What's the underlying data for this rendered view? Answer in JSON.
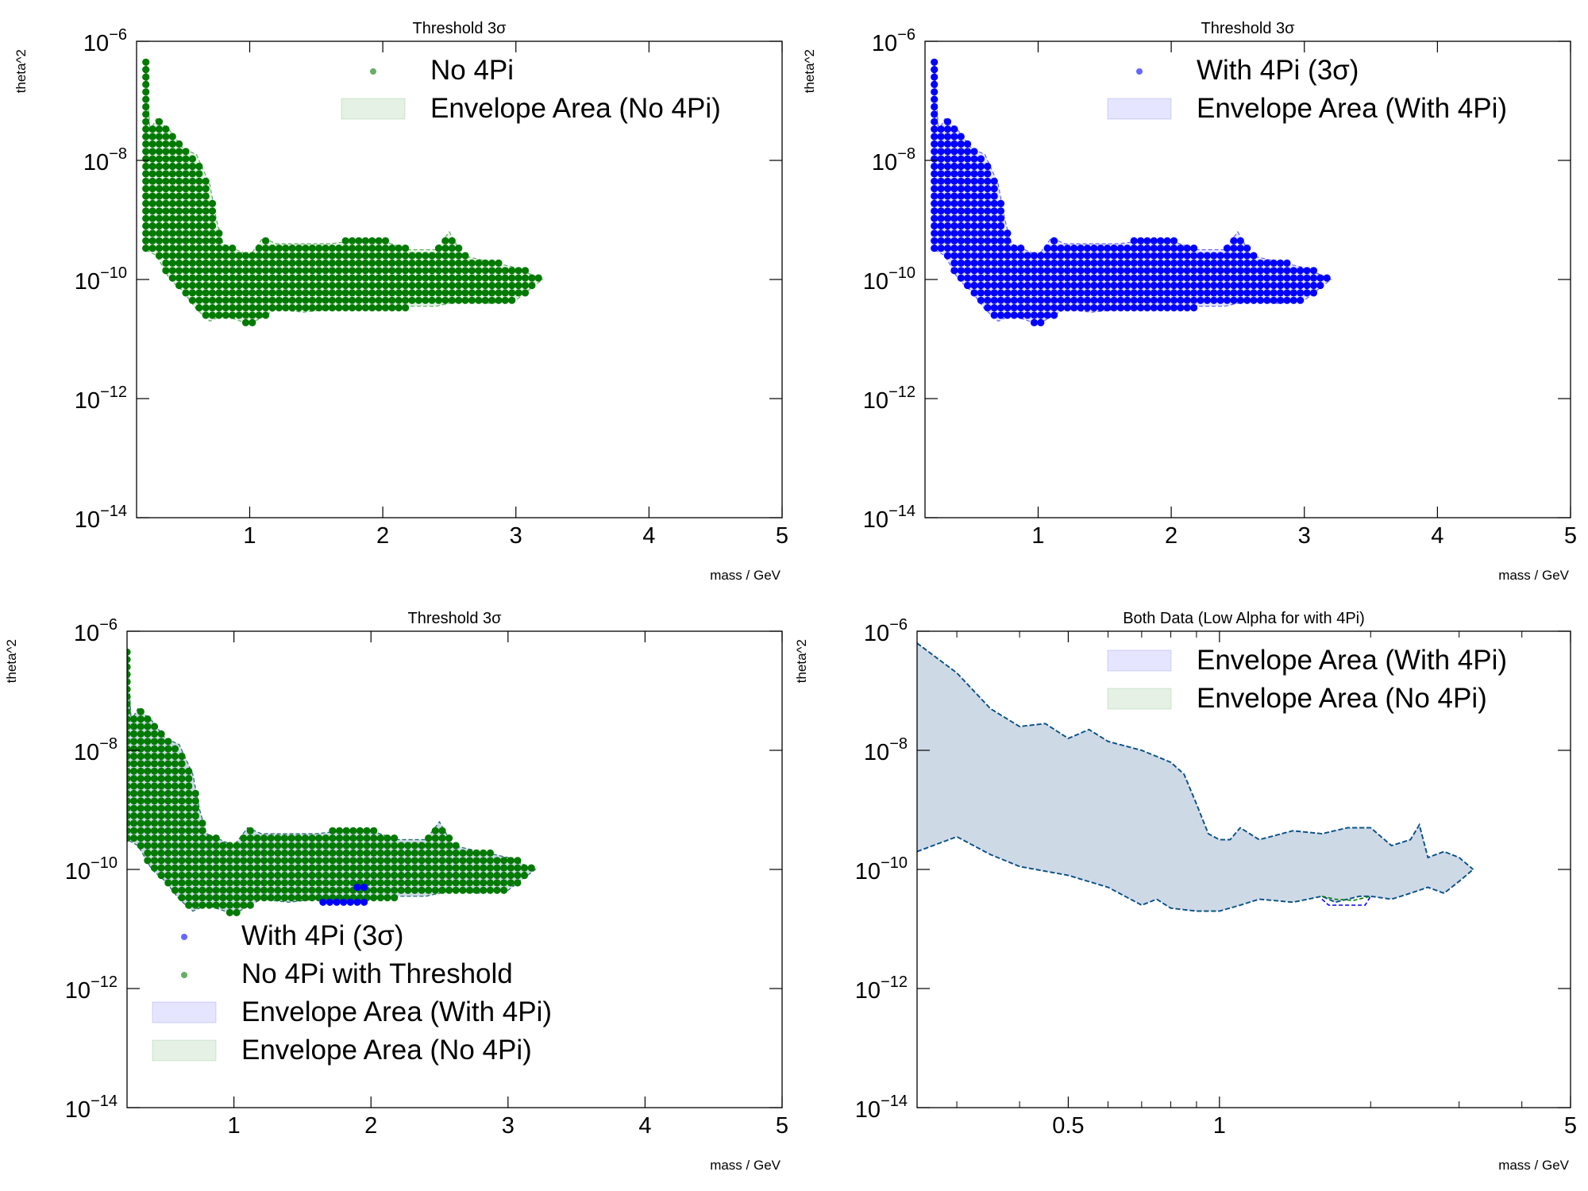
{
  "figure": {
    "panels": [
      {
        "id": "tl",
        "title": "Threshold 3σ",
        "xlabel": "mass / GeV",
        "ylabel": "theta^2",
        "xscale": "linear",
        "xlim": [
          0.15,
          5
        ],
        "xticks": [
          1,
          2,
          3,
          4,
          5
        ],
        "xticklabels": [
          "1",
          "2",
          "3",
          "4",
          "5"
        ],
        "yscale": "log",
        "ylim_exp": [
          -14,
          -6
        ],
        "yticks_exp": [
          -14,
          -12,
          -10,
          -8,
          -6
        ],
        "yticklabels": [
          "10",
          "10",
          "10",
          "10",
          "10"
        ],
        "ytick_exponents": [
          "−14",
          "−12",
          "−10",
          "−8",
          "−6"
        ],
        "legend_position": "top-right",
        "legend": [
          {
            "kind": "point",
            "label": "No 4Pi",
            "color": "#007a00"
          },
          {
            "kind": "area",
            "label": "Envelope Area (No 4Pi)",
            "color": "#007a00"
          }
        ]
      },
      {
        "id": "tr",
        "title": "Threshold 3σ",
        "xlabel": "mass / GeV",
        "ylabel": "theta^2",
        "xscale": "linear",
        "xlim": [
          0.15,
          5
        ],
        "xticks": [
          1,
          2,
          3,
          4,
          5
        ],
        "xticklabels": [
          "1",
          "2",
          "3",
          "4",
          "5"
        ],
        "yscale": "log",
        "ylim_exp": [
          -14,
          -6
        ],
        "yticks_exp": [
          -14,
          -12,
          -10,
          -8,
          -6
        ],
        "yticklabels": [
          "10",
          "10",
          "10",
          "10",
          "10"
        ],
        "ytick_exponents": [
          "−14",
          "−12",
          "−10",
          "−8",
          "−6"
        ],
        "legend_position": "top-right",
        "legend": [
          {
            "kind": "point",
            "label": "With 4Pi (3σ)",
            "color": "#0000ff"
          },
          {
            "kind": "area",
            "label": "Envelope Area (With 4Pi)",
            "color": "#0000ff"
          }
        ]
      },
      {
        "id": "bl",
        "title": "Threshold 3σ",
        "xlabel": "mass / GeV",
        "ylabel": "theta^2",
        "xscale": "linear",
        "xlim": [
          0.22,
          5
        ],
        "xticks": [
          1,
          2,
          3,
          4,
          5
        ],
        "xticklabels": [
          "1",
          "2",
          "3",
          "4",
          "5"
        ],
        "yscale": "log",
        "ylim_exp": [
          -14,
          -6
        ],
        "yticks_exp": [
          -14,
          -12,
          -10,
          -8,
          -6
        ],
        "yticklabels": [
          "10",
          "10",
          "10",
          "10",
          "10"
        ],
        "ytick_exponents": [
          "−14",
          "−12",
          "−10",
          "−8",
          "−6"
        ],
        "legend_position": "lower-left",
        "legend": [
          {
            "kind": "point",
            "label": "With 4Pi (3σ)",
            "color": "#0000ff"
          },
          {
            "kind": "point",
            "label": "No 4Pi with Threshold",
            "color": "#007a00"
          },
          {
            "kind": "area",
            "label": "Envelope Area (With 4Pi)",
            "color": "#0000ff"
          },
          {
            "kind": "area",
            "label": "Envelope Area (No 4Pi)",
            "color": "#007a00"
          }
        ]
      },
      {
        "id": "br",
        "title": "Both Data (Low Alpha for with 4Pi)",
        "xlabel": "mass / GeV",
        "ylabel": "theta^2",
        "xscale": "log",
        "xlim": [
          0.25,
          5
        ],
        "xticks": [
          0.5,
          1,
          5
        ],
        "xticklabels": [
          "0.5",
          "1",
          "5"
        ],
        "xminor": [
          0.3,
          0.4,
          0.6,
          0.7,
          0.8,
          0.9,
          2,
          3,
          4
        ],
        "yscale": "log",
        "ylim_exp": [
          -14,
          -6
        ],
        "yticks_exp": [
          -14,
          -12,
          -10,
          -8,
          -6
        ],
        "yticklabels": [
          "10",
          "10",
          "10",
          "10",
          "10"
        ],
        "ytick_exponents": [
          "−14",
          "−12",
          "−10",
          "−8",
          "−6"
        ],
        "legend_position": "top-right",
        "legend": [
          {
            "kind": "area",
            "label": "Envelope Area (With 4Pi)",
            "color": "#0000ff"
          },
          {
            "kind": "area",
            "label": "Envelope Area (No 4Pi)",
            "color": "#007a00"
          }
        ]
      }
    ]
  },
  "chart_data": [
    {
      "type": "scatter",
      "panel": "tl",
      "title": "Threshold 3σ",
      "xlabel": "mass / GeV",
      "ylabel": "theta^2",
      "series": [
        {
          "name": "No 4Pi",
          "color": "#007a00",
          "style": "dense grid of points with envelope"
        }
      ],
      "envelope_upper": [
        [
          0.22,
          -6.3
        ],
        [
          0.25,
          -7.5
        ],
        [
          0.3,
          -7.3
        ],
        [
          0.4,
          -7.5
        ],
        [
          0.5,
          -7.8
        ],
        [
          0.6,
          -7.9
        ],
        [
          0.7,
          -8.4
        ],
        [
          0.75,
          -9.0
        ],
        [
          0.8,
          -9.4
        ],
        [
          0.9,
          -9.5
        ],
        [
          1.0,
          -9.6
        ],
        [
          1.1,
          -9.3
        ],
        [
          1.2,
          -9.4
        ],
        [
          1.4,
          -9.4
        ],
        [
          1.6,
          -9.4
        ],
        [
          1.8,
          -9.35
        ],
        [
          2.0,
          -9.35
        ],
        [
          2.2,
          -9.5
        ],
        [
          2.4,
          -9.5
        ],
        [
          2.5,
          -9.2
        ],
        [
          2.6,
          -9.6
        ],
        [
          2.8,
          -9.7
        ],
        [
          3.0,
          -9.8
        ],
        [
          3.2,
          -10.0
        ]
      ],
      "envelope_lower": [
        [
          0.22,
          -9.5
        ],
        [
          0.3,
          -9.6
        ],
        [
          0.4,
          -10.0
        ],
        [
          0.5,
          -10.2
        ],
        [
          0.6,
          -10.5
        ],
        [
          0.7,
          -10.7
        ],
        [
          0.8,
          -10.6
        ],
        [
          1.0,
          -10.75
        ],
        [
          1.2,
          -10.5
        ],
        [
          1.4,
          -10.55
        ],
        [
          1.6,
          -10.5
        ],
        [
          1.8,
          -10.5
        ],
        [
          2.0,
          -10.5
        ],
        [
          2.2,
          -10.45
        ],
        [
          2.4,
          -10.45
        ],
        [
          2.6,
          -10.35
        ],
        [
          2.8,
          -10.4
        ],
        [
          3.0,
          -10.35
        ],
        [
          3.2,
          -10.0
        ]
      ],
      "xlim": [
        0.15,
        5
      ],
      "ylim": [
        1e-14,
        1e-06
      ]
    },
    {
      "type": "scatter",
      "panel": "tr",
      "title": "Threshold 3σ",
      "xlabel": "mass / GeV",
      "ylabel": "theta^2",
      "series": [
        {
          "name": "With 4Pi (3σ)",
          "color": "#0000ff",
          "style": "dense grid of points with envelope"
        }
      ],
      "envelope_upper": [
        [
          0.22,
          -6.3
        ],
        [
          0.25,
          -7.5
        ],
        [
          0.3,
          -7.3
        ],
        [
          0.4,
          -7.5
        ],
        [
          0.5,
          -7.8
        ],
        [
          0.6,
          -7.9
        ],
        [
          0.7,
          -8.4
        ],
        [
          0.75,
          -9.0
        ],
        [
          0.8,
          -9.4
        ],
        [
          0.9,
          -9.5
        ],
        [
          1.0,
          -9.6
        ],
        [
          1.1,
          -9.3
        ],
        [
          1.2,
          -9.4
        ],
        [
          1.4,
          -9.4
        ],
        [
          1.6,
          -9.4
        ],
        [
          1.8,
          -9.35
        ],
        [
          2.0,
          -9.35
        ],
        [
          2.2,
          -9.5
        ],
        [
          2.4,
          -9.5
        ],
        [
          2.5,
          -9.2
        ],
        [
          2.6,
          -9.6
        ],
        [
          2.8,
          -9.7
        ],
        [
          3.0,
          -9.8
        ],
        [
          3.2,
          -10.0
        ]
      ],
      "envelope_lower": [
        [
          0.22,
          -9.5
        ],
        [
          0.3,
          -9.6
        ],
        [
          0.4,
          -10.0
        ],
        [
          0.5,
          -10.2
        ],
        [
          0.6,
          -10.5
        ],
        [
          0.7,
          -10.7
        ],
        [
          0.8,
          -10.6
        ],
        [
          1.0,
          -10.75
        ],
        [
          1.2,
          -10.5
        ],
        [
          1.4,
          -10.55
        ],
        [
          1.6,
          -10.5
        ],
        [
          1.8,
          -10.5
        ],
        [
          2.0,
          -10.5
        ],
        [
          2.2,
          -10.45
        ],
        [
          2.4,
          -10.45
        ],
        [
          2.6,
          -10.35
        ],
        [
          2.8,
          -10.4
        ],
        [
          3.0,
          -10.35
        ],
        [
          3.2,
          -10.0
        ]
      ],
      "xlim": [
        0.15,
        5
      ],
      "ylim": [
        1e-14,
        1e-06
      ]
    },
    {
      "type": "scatter",
      "panel": "bl",
      "title": "Threshold 3σ",
      "xlabel": "mass / GeV",
      "ylabel": "theta^2",
      "series": [
        {
          "name": "With 4Pi (3σ)",
          "color": "#0000ff"
        },
        {
          "name": "No 4Pi with Threshold",
          "color": "#007a00"
        }
      ],
      "extra_blue_points": [
        [
          1.65,
          -10.55
        ],
        [
          1.7,
          -10.55
        ],
        [
          1.75,
          -10.55
        ],
        [
          1.8,
          -10.55
        ],
        [
          1.85,
          -10.55
        ],
        [
          1.9,
          -10.55
        ],
        [
          1.95,
          -10.55
        ],
        [
          1.9,
          -10.3
        ],
        [
          1.95,
          -10.3
        ]
      ],
      "xlim": [
        0.22,
        5
      ],
      "ylim": [
        1e-14,
        1e-06
      ]
    },
    {
      "type": "area",
      "panel": "br",
      "title": "Both Data (Low Alpha for with 4Pi)",
      "xlabel": "mass / GeV",
      "ylabel": "theta^2",
      "xscale": "log",
      "series": [
        {
          "name": "Envelope Area (With 4Pi)",
          "color": "#0000ff"
        },
        {
          "name": "Envelope Area (No 4Pi)",
          "color": "#007a00"
        }
      ],
      "upper": [
        [
          0.25,
          -6.2
        ],
        [
          0.3,
          -6.7
        ],
        [
          0.35,
          -7.3
        ],
        [
          0.4,
          -7.6
        ],
        [
          0.45,
          -7.55
        ],
        [
          0.5,
          -7.8
        ],
        [
          0.55,
          -7.65
        ],
        [
          0.6,
          -7.85
        ],
        [
          0.7,
          -8.0
        ],
        [
          0.8,
          -8.2
        ],
        [
          0.85,
          -8.4
        ],
        [
          0.9,
          -8.9
        ],
        [
          0.95,
          -9.4
        ],
        [
          1.0,
          -9.5
        ],
        [
          1.05,
          -9.5
        ],
        [
          1.1,
          -9.3
        ],
        [
          1.2,
          -9.5
        ],
        [
          1.4,
          -9.35
        ],
        [
          1.6,
          -9.4
        ],
        [
          1.8,
          -9.3
        ],
        [
          2.0,
          -9.3
        ],
        [
          2.2,
          -9.6
        ],
        [
          2.4,
          -9.5
        ],
        [
          2.5,
          -9.25
        ],
        [
          2.6,
          -9.8
        ],
        [
          2.8,
          -9.7
        ],
        [
          3.0,
          -9.8
        ],
        [
          3.2,
          -10.0
        ]
      ],
      "lower": [
        [
          0.25,
          -9.7
        ],
        [
          0.3,
          -9.45
        ],
        [
          0.35,
          -9.75
        ],
        [
          0.4,
          -9.95
        ],
        [
          0.5,
          -10.1
        ],
        [
          0.6,
          -10.3
        ],
        [
          0.7,
          -10.6
        ],
        [
          0.75,
          -10.5
        ],
        [
          0.8,
          -10.65
        ],
        [
          0.9,
          -10.7
        ],
        [
          1.0,
          -10.7
        ],
        [
          1.1,
          -10.6
        ],
        [
          1.2,
          -10.5
        ],
        [
          1.4,
          -10.55
        ],
        [
          1.5,
          -10.5
        ],
        [
          1.6,
          -10.45
        ],
        [
          1.7,
          -10.55
        ],
        [
          1.9,
          -10.45
        ],
        [
          2.0,
          -10.45
        ],
        [
          2.2,
          -10.5
        ],
        [
          2.4,
          -10.4
        ],
        [
          2.6,
          -10.3
        ],
        [
          2.8,
          -10.4
        ],
        [
          3.0,
          -10.2
        ],
        [
          3.2,
          -10.0
        ]
      ],
      "xlim": [
        0.25,
        5
      ],
      "ylim": [
        1e-14,
        1e-06
      ]
    }
  ]
}
